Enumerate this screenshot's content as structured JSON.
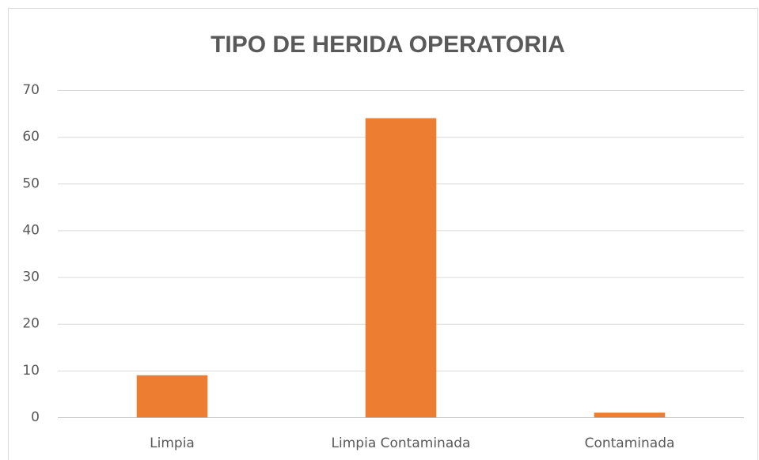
{
  "chart_data": {
    "type": "bar",
    "title": "TIPO DE HERIDA OPERATORIA",
    "categories": [
      "Limpia",
      "Limpia Contaminada",
      "Contaminada"
    ],
    "values": [
      9,
      64,
      1
    ],
    "color": "#ed7d31",
    "ylim": [
      0,
      70
    ],
    "yticks": [
      0,
      10,
      20,
      30,
      40,
      50,
      60,
      70
    ],
    "grid": true
  }
}
